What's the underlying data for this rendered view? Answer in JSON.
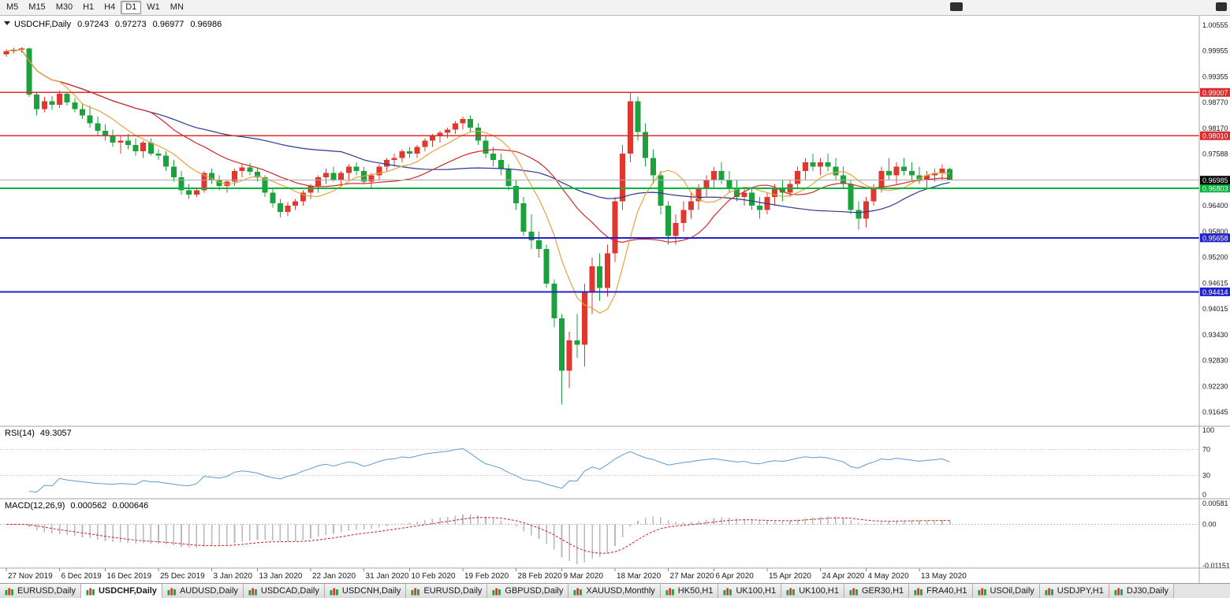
{
  "toolbar": {
    "timeframes": [
      "M5",
      "M15",
      "M30",
      "H1",
      "H4",
      "D1",
      "W1",
      "MN"
    ],
    "active": "D1"
  },
  "title_bar": {
    "symbol_label": "USDCHF,Daily",
    "open": "0.97243",
    "high": "0.97273",
    "low": "0.96977",
    "close": "0.96986"
  },
  "chart_data": {
    "type": "candlestick",
    "symbol": "USDCHF",
    "period": "Daily",
    "x_labels": [
      "27 Nov 2019",
      "6 Dec 2019",
      "16 Dec 2019",
      "25 Dec 2019",
      "3 Jan 2020",
      "13 Jan 2020",
      "22 Jan 2020",
      "31 Jan 2020",
      "10 Feb 2020",
      "19 Feb 2020",
      "28 Feb 2020",
      "9 Mar 2020",
      "18 Mar 2020",
      "27 Mar 2020",
      "6 Apr 2020",
      "15 Apr 2020",
      "24 Apr 2020",
      "4 May 2020",
      "13 May 2020"
    ],
    "x_label_indices": [
      0,
      7,
      13,
      20,
      27,
      33,
      40,
      47,
      53,
      60,
      67,
      73,
      80,
      87,
      93,
      100,
      107,
      113,
      120
    ],
    "price_axis_labels": [
      "1.00555",
      "0.99955",
      "0.99355",
      "0.98770",
      "0.98170",
      "0.97588",
      "0.96988",
      "0.96400",
      "0.95800",
      "0.95200",
      "0.94615",
      "0.94015",
      "0.93430",
      "0.92830",
      "0.92230",
      "0.91645"
    ],
    "bull_color": "#e0382e",
    "bear_color": "#1ca23c",
    "moving_averages": [
      {
        "period": 8,
        "color": "#e8a33d"
      },
      {
        "period": 20,
        "color": "#d42a2a"
      },
      {
        "period": 45,
        "color": "#2b3990"
      }
    ],
    "horizontal_lines": [
      {
        "price": 0.99007,
        "label": "0.99007",
        "color": "#dd2b2b",
        "width": 1.4
      },
      {
        "price": 0.9801,
        "label": "0.98010",
        "color": "#dd2b2b",
        "width": 1.4
      },
      {
        "price": 0.96803,
        "label": "0.96803",
        "color": "#00b43c",
        "width": 2
      },
      {
        "price": 0.95658,
        "label": "0.95658",
        "color": "#2222cc",
        "width": 2
      },
      {
        "price": 0.94414,
        "label": "0.94414",
        "color": "#2222cc",
        "width": 2
      }
    ],
    "bid": {
      "label": "0.96985",
      "price": 0.96985,
      "badge_color": "#000000"
    },
    "indicators": [
      {
        "name": "RSI",
        "label": "RSI(14)",
        "value": "49.3057",
        "period": 14,
        "color": "#5b9bd5",
        "scale_labels": [
          "100",
          "70",
          "30",
          "0"
        ],
        "guide_levels": [
          70,
          30
        ]
      },
      {
        "name": "MACD",
        "label": "MACD(12,26,9)",
        "value_main": "0.000562",
        "value_signal": "0.000646",
        "histogram_color": "#b9b9b9",
        "signal_color": "#cf2020",
        "scale_labels": [
          "0.00581",
          "0.00",
          "-0.01151"
        ]
      }
    ],
    "candles": [
      [
        0.9988,
        1.0,
        0.9983,
        0.9996
      ],
      [
        0.9996,
        1.0004,
        0.999,
        0.9999
      ],
      [
        0.9999,
        1.0005,
        0.9992,
        1.0002
      ],
      [
        1.0002,
        1.0004,
        0.989,
        0.9896
      ],
      [
        0.9896,
        0.99,
        0.9848,
        0.9862
      ],
      [
        0.9862,
        0.989,
        0.9855,
        0.988
      ],
      [
        0.988,
        0.9892,
        0.986,
        0.9872
      ],
      [
        0.9872,
        0.9905,
        0.9865,
        0.9898
      ],
      [
        0.9898,
        0.9902,
        0.987,
        0.9878
      ],
      [
        0.9878,
        0.9888,
        0.9855,
        0.9862
      ],
      [
        0.9862,
        0.9875,
        0.984,
        0.9848
      ],
      [
        0.9848,
        0.987,
        0.982,
        0.983
      ],
      [
        0.983,
        0.9845,
        0.98,
        0.9812
      ],
      [
        0.9812,
        0.9828,
        0.979,
        0.98
      ],
      [
        0.98,
        0.9815,
        0.9775,
        0.9785
      ],
      [
        0.9785,
        0.98,
        0.976,
        0.979
      ],
      [
        0.979,
        0.9805,
        0.977,
        0.978
      ],
      [
        0.978,
        0.9795,
        0.9755,
        0.9765
      ],
      [
        0.9765,
        0.979,
        0.975,
        0.9785
      ],
      [
        0.9785,
        0.9795,
        0.9755,
        0.976
      ],
      [
        0.976,
        0.977,
        0.9745,
        0.9755
      ],
      [
        0.9755,
        0.9765,
        0.972,
        0.973
      ],
      [
        0.973,
        0.9745,
        0.9695,
        0.9705
      ],
      [
        0.9705,
        0.972,
        0.9665,
        0.9675
      ],
      [
        0.9675,
        0.969,
        0.9655,
        0.9665
      ],
      [
        0.9665,
        0.968,
        0.966,
        0.9675
      ],
      [
        0.9675,
        0.972,
        0.967,
        0.9715
      ],
      [
        0.9715,
        0.9725,
        0.969,
        0.97
      ],
      [
        0.97,
        0.971,
        0.9675,
        0.9685
      ],
      [
        0.9685,
        0.97,
        0.967,
        0.9695
      ],
      [
        0.9695,
        0.9725,
        0.9685,
        0.972
      ],
      [
        0.972,
        0.9735,
        0.9705,
        0.9728
      ],
      [
        0.9728,
        0.9738,
        0.971,
        0.9718
      ],
      [
        0.9718,
        0.9728,
        0.9695,
        0.9705
      ],
      [
        0.9705,
        0.971,
        0.966,
        0.967
      ],
      [
        0.967,
        0.968,
        0.9635,
        0.9645
      ],
      [
        0.9645,
        0.9655,
        0.9613,
        0.9625
      ],
      [
        0.9625,
        0.9648,
        0.9615,
        0.964
      ],
      [
        0.964,
        0.9655,
        0.963,
        0.965
      ],
      [
        0.965,
        0.9675,
        0.964,
        0.967
      ],
      [
        0.967,
        0.969,
        0.9655,
        0.9685
      ],
      [
        0.9685,
        0.971,
        0.967,
        0.9705
      ],
      [
        0.9705,
        0.9725,
        0.969,
        0.9715
      ],
      [
        0.9715,
        0.973,
        0.9695,
        0.97
      ],
      [
        0.97,
        0.972,
        0.9685,
        0.9715
      ],
      [
        0.9715,
        0.9735,
        0.97,
        0.973
      ],
      [
        0.973,
        0.974,
        0.971,
        0.972
      ],
      [
        0.972,
        0.973,
        0.969,
        0.9695
      ],
      [
        0.9695,
        0.9715,
        0.968,
        0.971
      ],
      [
        0.971,
        0.9735,
        0.97,
        0.973
      ],
      [
        0.973,
        0.975,
        0.972,
        0.9745
      ],
      [
        0.9745,
        0.976,
        0.973,
        0.975
      ],
      [
        0.975,
        0.977,
        0.974,
        0.9765
      ],
      [
        0.9765,
        0.9775,
        0.975,
        0.976
      ],
      [
        0.976,
        0.978,
        0.975,
        0.9775
      ],
      [
        0.9775,
        0.9795,
        0.9765,
        0.979
      ],
      [
        0.979,
        0.9805,
        0.9775,
        0.98
      ],
      [
        0.98,
        0.9812,
        0.9785,
        0.9808
      ],
      [
        0.9808,
        0.982,
        0.9795,
        0.9815
      ],
      [
        0.9815,
        0.9835,
        0.9805,
        0.983
      ],
      [
        0.983,
        0.9845,
        0.9815,
        0.984
      ],
      [
        0.984,
        0.9848,
        0.981,
        0.982
      ],
      [
        0.982,
        0.983,
        0.978,
        0.979
      ],
      [
        0.979,
        0.98,
        0.975,
        0.976
      ],
      [
        0.976,
        0.9775,
        0.973,
        0.9745
      ],
      [
        0.9745,
        0.976,
        0.971,
        0.9725
      ],
      [
        0.9725,
        0.9735,
        0.9675,
        0.9685
      ],
      [
        0.9685,
        0.97,
        0.963,
        0.9645
      ],
      [
        0.9645,
        0.966,
        0.957,
        0.958
      ],
      [
        0.958,
        0.962,
        0.954,
        0.956
      ],
      [
        0.956,
        0.958,
        0.952,
        0.954
      ],
      [
        0.954,
        0.955,
        0.945,
        0.946
      ],
      [
        0.946,
        0.947,
        0.936,
        0.938
      ],
      [
        0.938,
        0.939,
        0.9182,
        0.926
      ],
      [
        0.926,
        0.935,
        0.922,
        0.933
      ],
      [
        0.933,
        0.939,
        0.929,
        0.932
      ],
      [
        0.932,
        0.946,
        0.927,
        0.944
      ],
      [
        0.944,
        0.952,
        0.939,
        0.95
      ],
      [
        0.95,
        0.953,
        0.942,
        0.945
      ],
      [
        0.945,
        0.955,
        0.943,
        0.953
      ],
      [
        0.953,
        0.966,
        0.951,
        0.965
      ],
      [
        0.965,
        0.978,
        0.963,
        0.976
      ],
      [
        0.976,
        0.9901,
        0.974,
        0.988
      ],
      [
        0.988,
        0.989,
        0.979,
        0.981
      ],
      [
        0.981,
        0.983,
        0.973,
        0.975
      ],
      [
        0.975,
        0.977,
        0.969,
        0.971
      ],
      [
        0.971,
        0.972,
        0.962,
        0.964
      ],
      [
        0.964,
        0.965,
        0.955,
        0.957
      ],
      [
        0.957,
        0.962,
        0.955,
        0.96
      ],
      [
        0.96,
        0.965,
        0.958,
        0.963
      ],
      [
        0.963,
        0.967,
        0.961,
        0.965
      ],
      [
        0.965,
        0.969,
        0.963,
        0.968
      ],
      [
        0.968,
        0.971,
        0.966,
        0.97
      ],
      [
        0.97,
        0.973,
        0.968,
        0.972
      ],
      [
        0.972,
        0.974,
        0.969,
        0.97
      ],
      [
        0.97,
        0.972,
        0.967,
        0.968
      ],
      [
        0.968,
        0.97,
        0.965,
        0.966
      ],
      [
        0.966,
        0.968,
        0.964,
        0.967
      ],
      [
        0.967,
        0.968,
        0.963,
        0.964
      ],
      [
        0.964,
        0.966,
        0.961,
        0.963
      ],
      [
        0.963,
        0.967,
        0.962,
        0.966
      ],
      [
        0.966,
        0.969,
        0.964,
        0.968
      ],
      [
        0.968,
        0.97,
        0.965,
        0.967
      ],
      [
        0.967,
        0.97,
        0.966,
        0.969
      ],
      [
        0.969,
        0.973,
        0.968,
        0.972
      ],
      [
        0.972,
        0.975,
        0.97,
        0.974
      ],
      [
        0.974,
        0.976,
        0.972,
        0.973
      ],
      [
        0.973,
        0.975,
        0.971,
        0.974
      ],
      [
        0.974,
        0.976,
        0.972,
        0.973
      ],
      [
        0.973,
        0.975,
        0.97,
        0.971
      ],
      [
        0.971,
        0.973,
        0.968,
        0.969
      ],
      [
        0.969,
        0.97,
        0.962,
        0.963
      ],
      [
        0.963,
        0.965,
        0.9585,
        0.961
      ],
      [
        0.961,
        0.966,
        0.959,
        0.965
      ],
      [
        0.965,
        0.969,
        0.964,
        0.968
      ],
      [
        0.968,
        0.973,
        0.967,
        0.972
      ],
      [
        0.972,
        0.975,
        0.97,
        0.971
      ],
      [
        0.971,
        0.974,
        0.969,
        0.973
      ],
      [
        0.973,
        0.975,
        0.971,
        0.972
      ],
      [
        0.972,
        0.974,
        0.97,
        0.971
      ],
      [
        0.971,
        0.973,
        0.969,
        0.97
      ],
      [
        0.97,
        0.972,
        0.968,
        0.971
      ],
      [
        0.971,
        0.9725,
        0.9695,
        0.9715
      ],
      [
        0.9715,
        0.9735,
        0.97,
        0.9725
      ],
      [
        0.97243,
        0.97273,
        0.96977,
        0.96986
      ]
    ]
  },
  "tabs": {
    "items": [
      "EURUSD,Daily",
      "USDCHF,Daily",
      "AUDUSD,Daily",
      "USDCAD,Daily",
      "USDCNH,Daily",
      "EURUSD,Daily",
      "GBPUSD,Daily",
      "XAUUSD,Monthly",
      "HK50,H1",
      "UK100,H1",
      "UK100,H1",
      "GER30,H1",
      "FRA40,H1",
      "USOil,Daily",
      "USDJPY,H1",
      "DJ30,Daily"
    ],
    "active_index": 1
  }
}
